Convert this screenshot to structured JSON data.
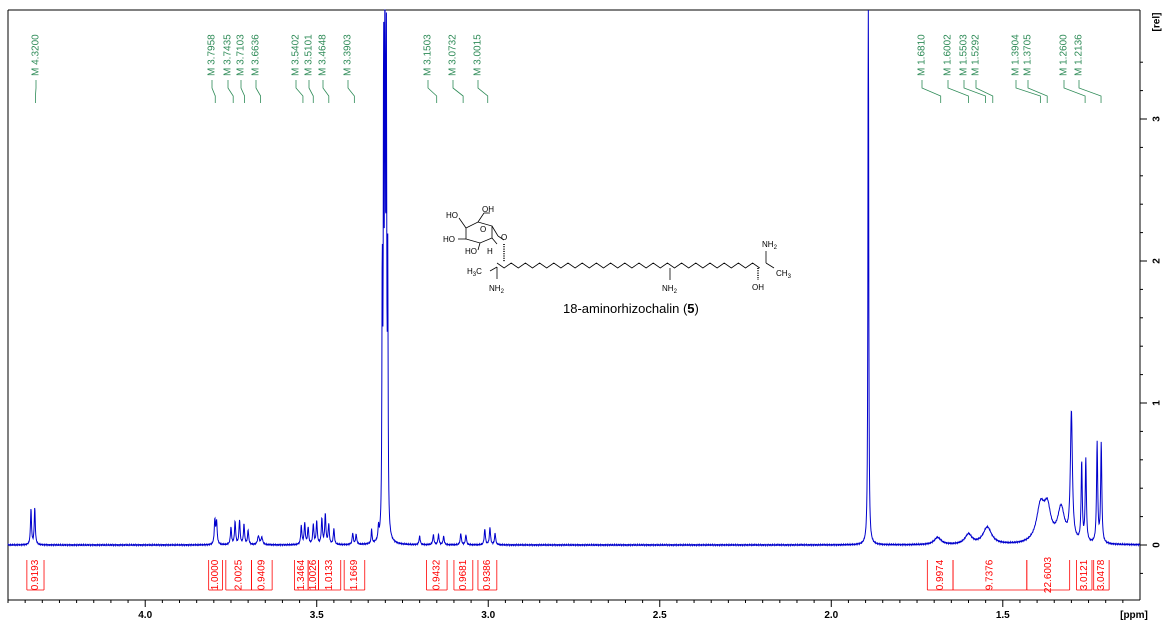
{
  "chart_data": {
    "type": "line",
    "title": "",
    "xlabel": "[ppm]",
    "ylabel": "[rel]",
    "x_reversed": true,
    "xlim": [
      4.4,
      1.1
    ],
    "ylim": [
      -0.3,
      3.8
    ],
    "x_ticks": [
      4.0,
      3.5,
      3.0,
      2.5,
      2.0,
      1.5
    ],
    "x_tick_labels": [
      "4.0",
      "3.5",
      "3.0",
      "2.5",
      "2.0",
      "1.5"
    ],
    "y_ticks": [
      0,
      1,
      2,
      3
    ],
    "y_tick_labels": [
      "0",
      "1",
      "2",
      "3"
    ],
    "line_color": "#0000cc",
    "peak_label_color": "#2e8b57",
    "integral_color": "#ff0000",
    "peak_labels": [
      {
        "ppm": 4.32,
        "text": "M 4.3200"
      },
      {
        "ppm": 3.7958,
        "text": "M 3.7958"
      },
      {
        "ppm": 3.7435,
        "text": "M 3.7435"
      },
      {
        "ppm": 3.7103,
        "text": "M 3.7103"
      },
      {
        "ppm": 3.6636,
        "text": "M 3.6636"
      },
      {
        "ppm": 3.5402,
        "text": "M 3.5402"
      },
      {
        "ppm": 3.5101,
        "text": "M 3.5101"
      },
      {
        "ppm": 3.4648,
        "text": "M 3.4648"
      },
      {
        "ppm": 3.3903,
        "text": "M 3.3903"
      },
      {
        "ppm": 3.1503,
        "text": "M 3.1503"
      },
      {
        "ppm": 3.0732,
        "text": "M 3.0732"
      },
      {
        "ppm": 3.0015,
        "text": "M 3.0015"
      },
      {
        "ppm": 1.681,
        "text": "M 1.6810"
      },
      {
        "ppm": 1.6002,
        "text": "M 1.6002"
      },
      {
        "ppm": 1.5503,
        "text": "M 1.5503"
      },
      {
        "ppm": 1.5292,
        "text": "M 1.5292"
      },
      {
        "ppm": 1.3904,
        "text": "M 1.3904"
      },
      {
        "ppm": 1.3705,
        "text": "M 1.3705"
      },
      {
        "ppm": 1.26,
        "text": "M 1.2600"
      },
      {
        "ppm": 1.2136,
        "text": "M 1.2136"
      }
    ],
    "integrals": [
      {
        "from": 4.345,
        "to": 4.295,
        "value": "0.9193"
      },
      {
        "from": 3.815,
        "to": 3.775,
        "value": "1.0000"
      },
      {
        "from": 3.765,
        "to": 3.69,
        "value": "2.0025"
      },
      {
        "from": 3.69,
        "to": 3.63,
        "value": "0.9409"
      },
      {
        "from": 3.565,
        "to": 3.525,
        "value": "1.3464"
      },
      {
        "from": 3.525,
        "to": 3.495,
        "value": "1.0026"
      },
      {
        "from": 3.495,
        "to": 3.43,
        "value": "1.0133"
      },
      {
        "from": 3.42,
        "to": 3.36,
        "value": "1.1669"
      },
      {
        "from": 3.18,
        "to": 3.12,
        "value": "0.9432"
      },
      {
        "from": 3.1,
        "to": 3.045,
        "value": "0.9681"
      },
      {
        "from": 3.03,
        "to": 2.975,
        "value": "0.9386"
      },
      {
        "from": 1.72,
        "to": 1.645,
        "value": "0.9974"
      },
      {
        "from": 1.645,
        "to": 1.43,
        "value": "9.7376"
      },
      {
        "from": 1.43,
        "to": 1.305,
        "value": "22.6003"
      },
      {
        "from": 1.285,
        "to": 1.24,
        "value": "3.0121"
      },
      {
        "from": 1.235,
        "to": 1.19,
        "value": "3.0478"
      }
    ],
    "spectrum_peaks": [
      {
        "ppm": 4.333,
        "height": 0.25,
        "width": 0.0018
      },
      {
        "ppm": 4.322,
        "height": 0.26,
        "width": 0.0018
      },
      {
        "ppm": 3.797,
        "height": 0.17,
        "width": 0.002
      },
      {
        "ppm": 3.792,
        "height": 0.16,
        "width": 0.002
      },
      {
        "ppm": 3.75,
        "height": 0.12,
        "width": 0.002
      },
      {
        "ppm": 3.738,
        "height": 0.16,
        "width": 0.002
      },
      {
        "ppm": 3.725,
        "height": 0.17,
        "width": 0.002
      },
      {
        "ppm": 3.712,
        "height": 0.14,
        "width": 0.002
      },
      {
        "ppm": 3.7,
        "height": 0.1,
        "width": 0.002
      },
      {
        "ppm": 3.67,
        "height": 0.06,
        "width": 0.003
      },
      {
        "ppm": 3.66,
        "height": 0.05,
        "width": 0.003
      },
      {
        "ppm": 3.545,
        "height": 0.13,
        "width": 0.002
      },
      {
        "ppm": 3.535,
        "height": 0.15,
        "width": 0.002
      },
      {
        "ppm": 3.525,
        "height": 0.12,
        "width": 0.002
      },
      {
        "ppm": 3.51,
        "height": 0.14,
        "width": 0.002
      },
      {
        "ppm": 3.5,
        "height": 0.16,
        "width": 0.002
      },
      {
        "ppm": 3.485,
        "height": 0.18,
        "width": 0.002
      },
      {
        "ppm": 3.475,
        "height": 0.21,
        "width": 0.002
      },
      {
        "ppm": 3.465,
        "height": 0.14,
        "width": 0.002
      },
      {
        "ppm": 3.45,
        "height": 0.11,
        "width": 0.002
      },
      {
        "ppm": 3.395,
        "height": 0.08,
        "width": 0.002
      },
      {
        "ppm": 3.385,
        "height": 0.07,
        "width": 0.002
      },
      {
        "ppm": 3.34,
        "height": 0.1,
        "width": 0.0015
      },
      {
        "ppm": 3.32,
        "height": 0.09,
        "width": 0.0015
      },
      {
        "ppm": 3.309,
        "height": 1.8,
        "width": 0.0012
      },
      {
        "ppm": 3.305,
        "height": 3.2,
        "width": 0.0012
      },
      {
        "ppm": 3.301,
        "height": 4.5,
        "width": 0.0012
      },
      {
        "ppm": 3.297,
        "height": 3.2,
        "width": 0.0012
      },
      {
        "ppm": 3.293,
        "height": 1.8,
        "width": 0.0012
      },
      {
        "ppm": 3.2,
        "height": 0.06,
        "width": 0.002
      },
      {
        "ppm": 3.16,
        "height": 0.07,
        "width": 0.002
      },
      {
        "ppm": 3.145,
        "height": 0.07,
        "width": 0.002
      },
      {
        "ppm": 3.13,
        "height": 0.06,
        "width": 0.002
      },
      {
        "ppm": 3.08,
        "height": 0.08,
        "width": 0.002
      },
      {
        "ppm": 3.065,
        "height": 0.07,
        "width": 0.002
      },
      {
        "ppm": 3.01,
        "height": 0.11,
        "width": 0.002
      },
      {
        "ppm": 2.995,
        "height": 0.12,
        "width": 0.002
      },
      {
        "ppm": 2.98,
        "height": 0.08,
        "width": 0.002
      },
      {
        "ppm": 1.892,
        "height": 4.5,
        "width": 0.0012
      },
      {
        "ppm": 1.69,
        "height": 0.05,
        "width": 0.012
      },
      {
        "ppm": 1.6,
        "height": 0.07,
        "width": 0.012
      },
      {
        "ppm": 1.545,
        "height": 0.12,
        "width": 0.015
      },
      {
        "ppm": 1.39,
        "height": 0.25,
        "width": 0.014
      },
      {
        "ppm": 1.37,
        "height": 0.22,
        "width": 0.012
      },
      {
        "ppm": 1.33,
        "height": 0.24,
        "width": 0.012
      },
      {
        "ppm": 1.3,
        "height": 0.9,
        "width": 0.0035
      },
      {
        "ppm": 1.27,
        "height": 0.55,
        "width": 0.002
      },
      {
        "ppm": 1.258,
        "height": 0.58,
        "width": 0.002
      },
      {
        "ppm": 1.225,
        "height": 0.7,
        "width": 0.002
      },
      {
        "ppm": 1.213,
        "height": 0.7,
        "width": 0.002
      }
    ]
  },
  "structure": {
    "ho1": "HO",
    "oh1": "OH",
    "ho2": "HO",
    "ho3": "HO",
    "o1": "O",
    "o2": "O",
    "h1": "H",
    "h3c": "H",
    "h3c_sub": "3",
    "h3c_tail": "C",
    "nh2_a": "NH",
    "nh2_a_sub": "2",
    "nh2_b": "NH",
    "nh2_b_sub": "2",
    "nh2_c": "NH",
    "nh2_c_sub": "2",
    "ch3": "CH",
    "ch3_sub": "3",
    "oh_c": "OH",
    "compound_prefix": "18-aminorhizochalin (",
    "compound_number": "5",
    "compound_suffix": ")"
  }
}
